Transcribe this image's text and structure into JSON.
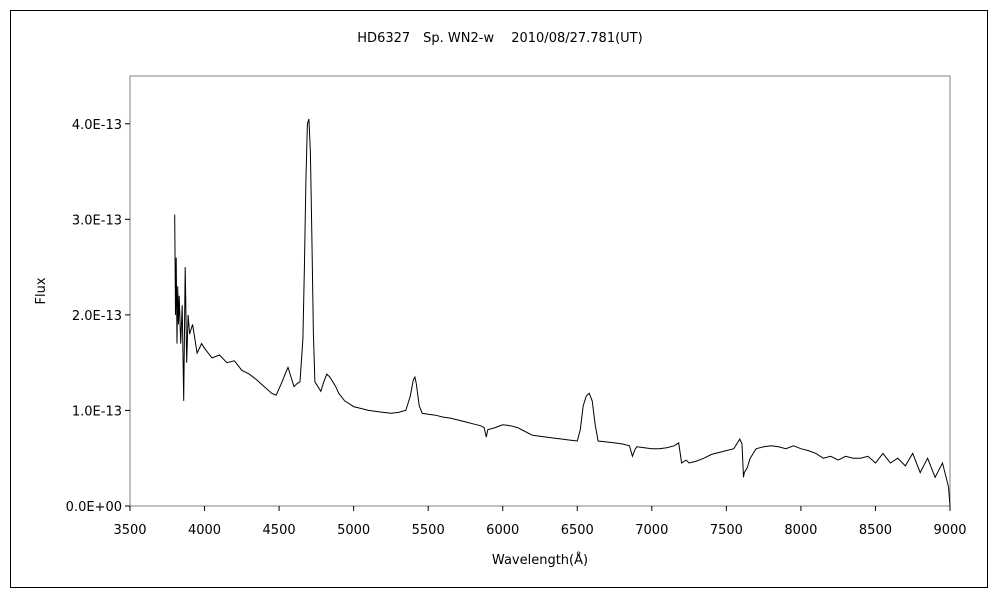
{
  "chart_data": {
    "type": "line",
    "title": "HD6327　Sp. WN2-w　 2010/08/27.781(UT)",
    "xlabel": "Wavelength(Å)",
    "ylabel": "Flux",
    "xlim": [
      3500,
      9000
    ],
    "ylim": [
      0,
      4.5e-13
    ],
    "x_ticks": [
      3500,
      4000,
      4500,
      5000,
      5500,
      6000,
      6500,
      7000,
      7500,
      8000,
      8500,
      9000
    ],
    "x_tick_labels": [
      "3500",
      "4000",
      "4500",
      "5000",
      "5500",
      "6000",
      "6500",
      "7000",
      "7500",
      "8000",
      "8500",
      "9000"
    ],
    "y_ticks": [
      0,
      1e-13,
      2e-13,
      3e-13,
      4e-13
    ],
    "y_tick_labels": [
      "0.0E+00",
      "1.0E-13",
      "2.0E-13",
      "3.0E-13",
      "4.0E-13"
    ],
    "grid": false,
    "legend": "none",
    "line_color": "#000000",
    "series": [
      {
        "x": [
          3800,
          3805,
          3810,
          3815,
          3820,
          3825,
          3830,
          3840,
          3850,
          3860,
          3870,
          3880,
          3890,
          3900,
          3920,
          3950,
          3980,
          4000,
          4050,
          4100,
          4150,
          4200,
          4250,
          4300,
          4350,
          4400,
          4450,
          4480,
          4520,
          4540,
          4560,
          4580,
          4600,
          4620,
          4640,
          4660,
          4670,
          4680,
          4690,
          4700,
          4710,
          4720,
          4730,
          4740,
          4760,
          4780,
          4800,
          4820,
          4840,
          4860,
          4880,
          4900,
          4940,
          4980,
          5000,
          5050,
          5100,
          5150,
          5200,
          5250,
          5300,
          5350,
          5380,
          5400,
          5411,
          5420,
          5440,
          5460,
          5500,
          5550,
          5600,
          5650,
          5700,
          5750,
          5800,
          5850,
          5875,
          5890,
          5900,
          5950,
          6000,
          6050,
          6100,
          6150,
          6200,
          6250,
          6300,
          6350,
          6400,
          6450,
          6500,
          6520,
          6540,
          6560,
          6580,
          6600,
          6620,
          6640,
          6700,
          6750,
          6800,
          6850,
          6870,
          6890,
          6900,
          6950,
          7000,
          7050,
          7100,
          7150,
          7180,
          7200,
          7230,
          7250,
          7300,
          7350,
          7400,
          7450,
          7500,
          7550,
          7590,
          7605,
          7615,
          7620,
          7640,
          7660,
          7680,
          7700,
          7750,
          7800,
          7850,
          7900,
          7950,
          8000,
          8050,
          8100,
          8150,
          8200,
          8250,
          8300,
          8350,
          8400,
          8450,
          8500,
          8550,
          8600,
          8650,
          8700,
          8750,
          8800,
          8850,
          8900,
          8950,
          8990,
          9000
        ],
        "y": [
          3.05e-13,
          2e-13,
          2.6e-13,
          1.7e-13,
          2.3e-13,
          1.9e-13,
          2.2e-13,
          1.7e-13,
          2.1e-13,
          1.1e-13,
          2.5e-13,
          1.5e-13,
          2e-13,
          1.8e-13,
          1.9e-13,
          1.6e-13,
          1.7e-13,
          1.65e-13,
          1.55e-13,
          1.58e-13,
          1.5e-13,
          1.52e-13,
          1.42e-13,
          1.38e-13,
          1.32e-13,
          1.25e-13,
          1.18e-13,
          1.16e-13,
          1.3e-13,
          1.38e-13,
          1.45e-13,
          1.35e-13,
          1.25e-13,
          1.28e-13,
          1.3e-13,
          1.75e-13,
          2.5e-13,
          3.4e-13,
          4e-13,
          4.05e-13,
          3.7e-13,
          2.8e-13,
          1.8e-13,
          1.3e-13,
          1.25e-13,
          1.2e-13,
          1.3e-13,
          1.38e-13,
          1.35e-13,
          1.3e-13,
          1.25e-13,
          1.18e-13,
          1.1e-13,
          1.06e-13,
          1.04e-13,
          1.02e-13,
          1e-13,
          9.9e-14,
          9.8e-14,
          9.7e-14,
          9.8e-14,
          1e-13,
          1.15e-13,
          1.32e-13,
          1.35e-13,
          1.28e-13,
          1.05e-13,
          9.7e-14,
          9.6e-14,
          9.5e-14,
          9.3e-14,
          9.2e-14,
          9e-14,
          8.8e-14,
          8.6e-14,
          8.4e-14,
          8.2e-14,
          7.2e-14,
          8e-14,
          8.2e-14,
          8.5e-14,
          8.4e-14,
          8.2e-14,
          7.8e-14,
          7.4e-14,
          7.3e-14,
          7.2e-14,
          7.1e-14,
          7e-14,
          6.9e-14,
          6.8e-14,
          8e-14,
          1.05e-13,
          1.15e-13,
          1.18e-13,
          1.1e-13,
          8.5e-14,
          6.8e-14,
          6.7e-14,
          6.6e-14,
          6.5e-14,
          6.3e-14,
          5.2e-14,
          6e-14,
          6.2e-14,
          6.1e-14,
          6e-14,
          6e-14,
          6.1e-14,
          6.3e-14,
          6.6e-14,
          4.5e-14,
          4.8e-14,
          4.5e-14,
          4.7e-14,
          5e-14,
          5.4e-14,
          5.6e-14,
          5.8e-14,
          6e-14,
          7e-14,
          6.5e-14,
          3e-14,
          3.5e-14,
          4e-14,
          5e-14,
          5.5e-14,
          6e-14,
          6.2e-14,
          6.3e-14,
          6.2e-14,
          6e-14,
          6.3e-14,
          6e-14,
          5.8e-14,
          5.5e-14,
          5e-14,
          5.2e-14,
          4.8e-14,
          5.2e-14,
          5e-14,
          5e-14,
          5.2e-14,
          4.5e-14,
          5.5e-14,
          4.5e-14,
          5e-14,
          4.2e-14,
          5.5e-14,
          3.5e-14,
          5e-14,
          3e-14,
          4.5e-14,
          2e-14,
          0.0
        ]
      }
    ]
  }
}
